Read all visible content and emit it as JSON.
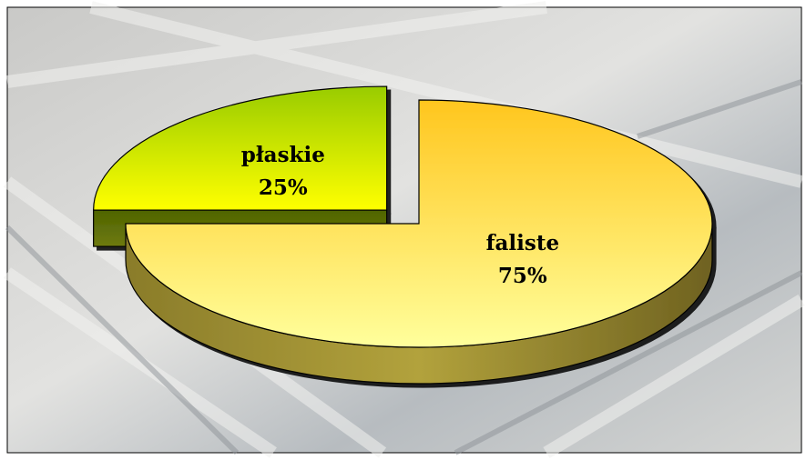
{
  "chart_data": {
    "type": "pie3d",
    "categories": [
      "płaskie",
      "faliste"
    ],
    "values": [
      25,
      75
    ],
    "value_labels": [
      "25%",
      "75%"
    ],
    "colors": [
      "#b5d800",
      "#ffd84a"
    ],
    "exploded": [
      true,
      false
    ]
  }
}
